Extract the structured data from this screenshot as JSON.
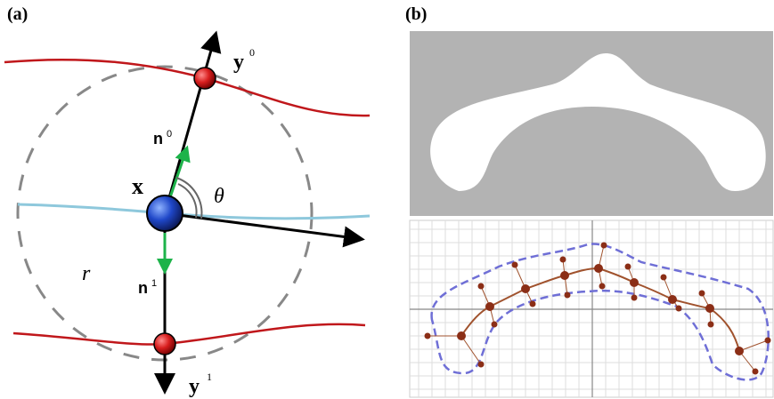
{
  "panel_a": {
    "label": "(a)",
    "y_top": {
      "base": "y",
      "sup": "0"
    },
    "n_top": {
      "base": "n",
      "sup": "0"
    },
    "center": "x",
    "angle": "θ",
    "radius": "r",
    "n_bottom": {
      "base": "n",
      "sup": "1"
    },
    "y_bottom": {
      "base": "y",
      "sup": "1"
    }
  },
  "panel_b": {
    "label": "(b)"
  }
}
